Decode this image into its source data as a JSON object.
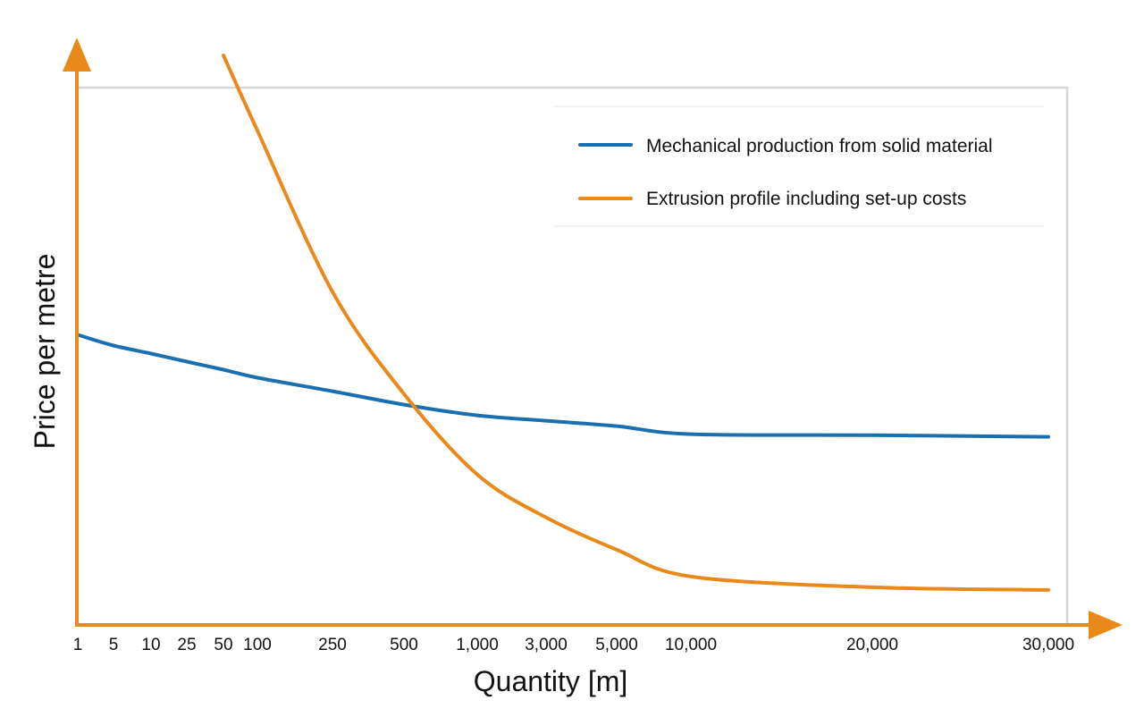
{
  "chart_data": {
    "type": "line",
    "title": "",
    "xlabel": "Quantity [m]",
    "ylabel": "Price per metre",
    "x_axis_scale": "categorical (non-uniform quantity ticks)",
    "x_ticks": [
      "1",
      "5",
      "10",
      "25",
      "50",
      "100",
      "250",
      "500",
      "1,000",
      "3,000",
      "5,000",
      "10,000",
      "20,000",
      "30,000"
    ],
    "y_ticks": [],
    "y_units": "relative (no y-axis values printed)",
    "grid": false,
    "legend_position": "top-right",
    "series": [
      {
        "name": "Mechanical production from solid material",
        "color": "#1a6fb0",
        "points": [
          {
            "x": 1,
            "y": 0.54
          },
          {
            "x": 5,
            "y": 0.52
          },
          {
            "x": 10,
            "y": 0.505
          },
          {
            "x": 25,
            "y": 0.49
          },
          {
            "x": 50,
            "y": 0.475
          },
          {
            "x": 100,
            "y": 0.46
          },
          {
            "x": 250,
            "y": 0.435
          },
          {
            "x": 500,
            "y": 0.41
          },
          {
            "x": 1000,
            "y": 0.39
          },
          {
            "x": 3000,
            "y": 0.38
          },
          {
            "x": 5000,
            "y": 0.37
          },
          {
            "x": 10000,
            "y": 0.355
          },
          {
            "x": 20000,
            "y": 0.353
          },
          {
            "x": 30000,
            "y": 0.35
          }
        ]
      },
      {
        "name": "Extrusion profile including set-up costs",
        "color": "#e8891a",
        "points": [
          {
            "x": 50,
            "y": 1.06
          },
          {
            "x": 100,
            "y": 0.92
          },
          {
            "x": 250,
            "y": 0.62
          },
          {
            "x": 500,
            "y": 0.43
          },
          {
            "x": 1000,
            "y": 0.28
          },
          {
            "x": 3000,
            "y": 0.2
          },
          {
            "x": 5000,
            "y": 0.14
          },
          {
            "x": 10000,
            "y": 0.09
          },
          {
            "x": 20000,
            "y": 0.07
          },
          {
            "x": 30000,
            "y": 0.065
          }
        ]
      }
    ]
  },
  "colors": {
    "axis": "#e8891a",
    "frame": "#d6d6d6",
    "text": "#111111"
  }
}
